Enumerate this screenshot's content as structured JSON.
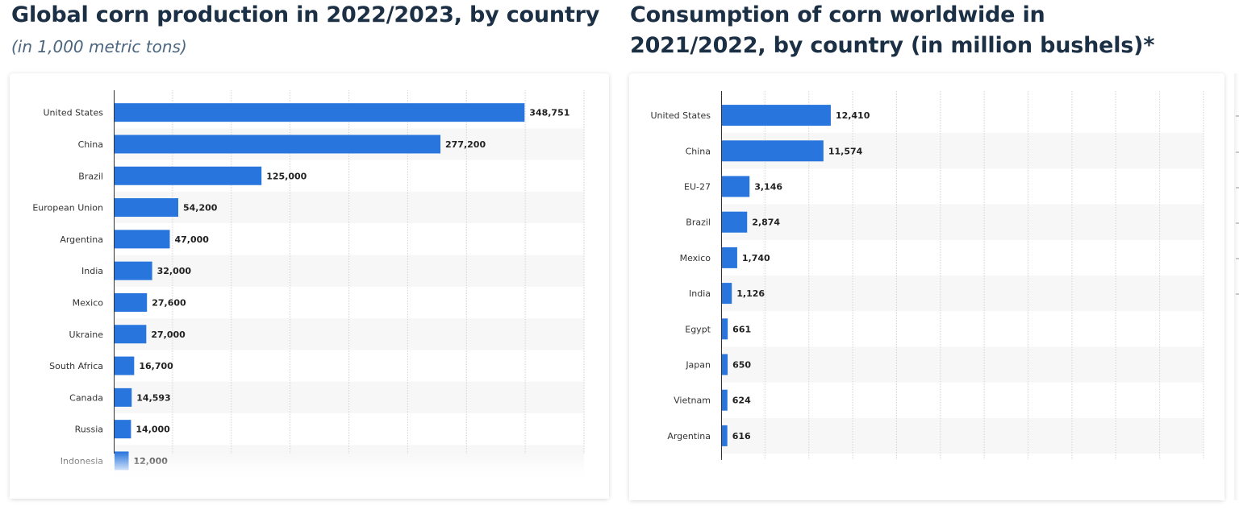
{
  "charts": [
    {
      "title": "Global corn production in 2022/2023, by country",
      "subtitle": "(in 1,000 metric tons)"
    },
    {
      "title_line1": "Consumption of corn worldwide in",
      "title_line2": "2021/2022, by country (in million bushels)*"
    }
  ],
  "chart_data": [
    {
      "type": "bar",
      "orientation": "horizontal",
      "title": "Global corn production in 2022/2023, by country",
      "subtitle": "(in 1,000 metric tons)",
      "categories": [
        "United States",
        "China",
        "Brazil",
        "European Union",
        "Argentina",
        "India",
        "Mexico",
        "Ukraine",
        "South Africa",
        "Canada",
        "Russia",
        "Indonesia"
      ],
      "values": [
        348751,
        277200,
        125000,
        54200,
        47000,
        32000,
        27600,
        27000,
        16700,
        14593,
        14000,
        12000
      ],
      "value_labels": [
        "348,751",
        "277,200",
        "125,000",
        "54,200",
        "47,000",
        "32,000",
        "27,600",
        "27,000",
        "16,700",
        "14,593",
        "14,000",
        "12,000"
      ],
      "xlim": [
        0,
        400000
      ],
      "gridlines": 8,
      "bar_color": "#2876dd",
      "fade_from_index": 10
    },
    {
      "type": "bar",
      "orientation": "horizontal",
      "title": "Consumption of corn worldwide in 2021/2022, by country (in million bushels)*",
      "categories": [
        "United States",
        "China",
        "EU-27",
        "Brazil",
        "Mexico",
        "India",
        "Egypt",
        "Japan",
        "Vietnam",
        "Argentina"
      ],
      "values": [
        12410,
        11574,
        3146,
        2874,
        1740,
        1126,
        661,
        650,
        624,
        616
      ],
      "value_labels": [
        "12,410",
        "11,574",
        "3,146",
        "2,874",
        "1,740",
        "1,126",
        "661",
        "650",
        "624",
        "616"
      ],
      "xlim": [
        0,
        55000
      ],
      "gridlines": 11,
      "bar_color": "#2876dd",
      "fade_from_index": 9
    }
  ]
}
